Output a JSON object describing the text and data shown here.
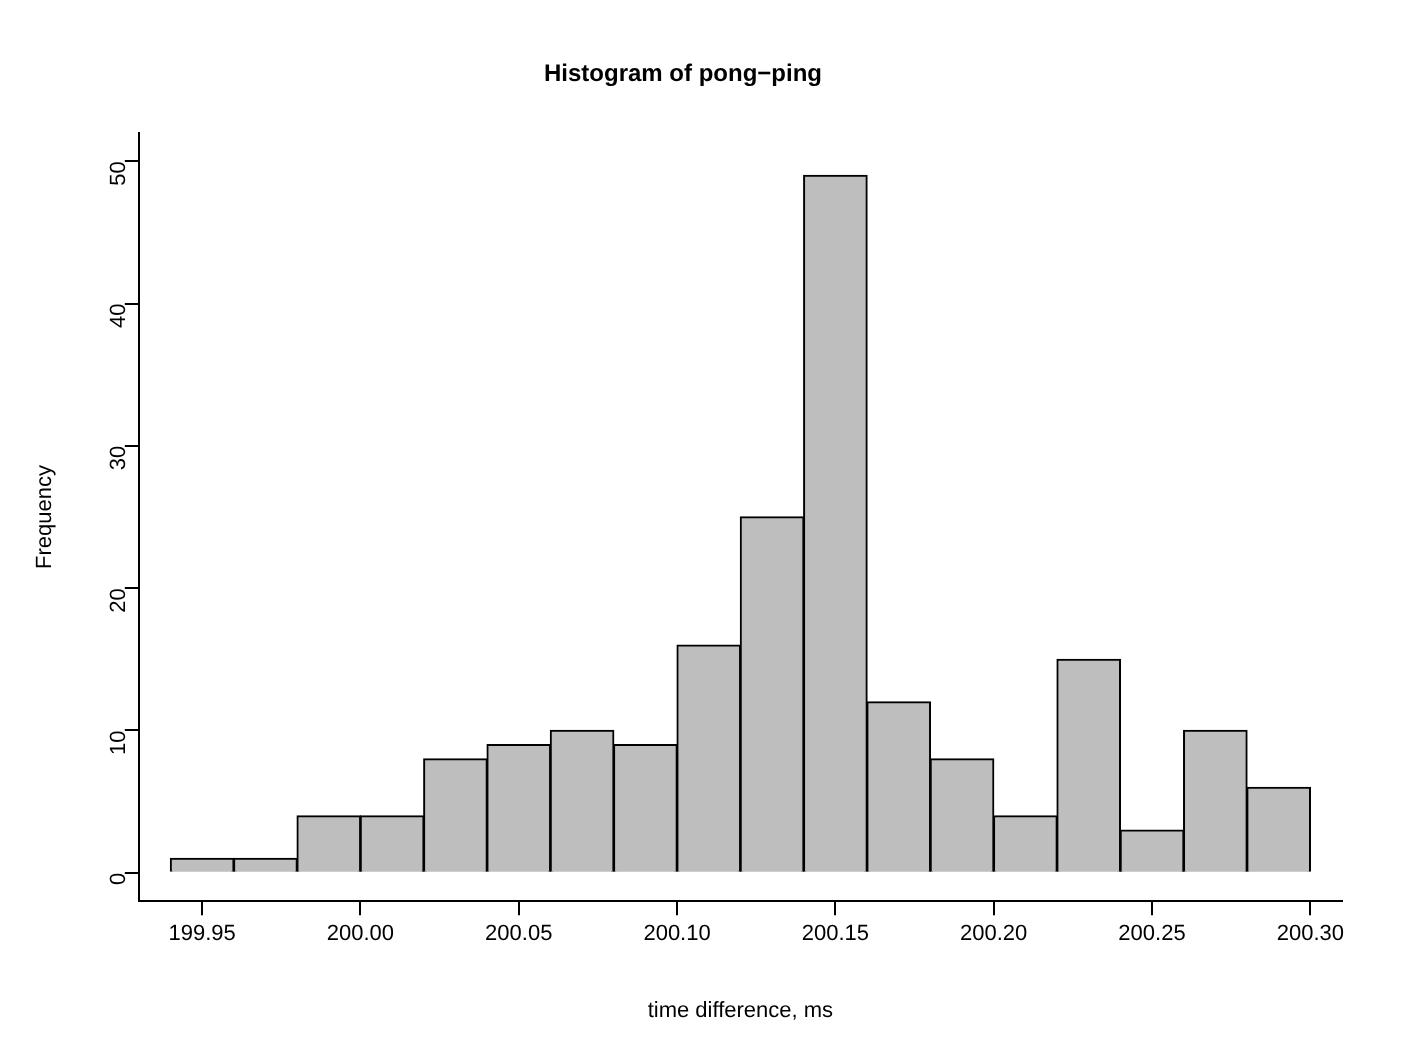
{
  "chart_data": {
    "type": "histogram",
    "title": "Histogram of pong−ping",
    "xlabel": "time difference, ms",
    "ylabel": "Frequency",
    "bins": [
      199.94,
      199.96,
      199.98,
      200.0,
      200.02,
      200.04,
      200.06,
      200.08,
      200.1,
      200.12,
      200.14,
      200.16,
      200.18,
      200.2,
      200.22,
      200.24,
      200.26,
      200.28,
      200.3
    ],
    "values": [
      1,
      1,
      4,
      4,
      8,
      9,
      10,
      9,
      16,
      25,
      49,
      12,
      8,
      4,
      15,
      3,
      10,
      6
    ],
    "color": "#bebebe",
    "xlim": [
      199.93,
      200.31
    ],
    "xticks": [
      {
        "value": 199.95,
        "label": "199.95"
      },
      {
        "value": 200.0,
        "label": "200.00"
      },
      {
        "value": 200.05,
        "label": "200.05"
      },
      {
        "value": 200.1,
        "label": "200.10"
      },
      {
        "value": 200.15,
        "label": "200.15"
      },
      {
        "value": 200.2,
        "label": "200.20"
      },
      {
        "value": 200.25,
        "label": "200.25"
      },
      {
        "value": 200.3,
        "label": "200.30"
      }
    ],
    "ylim": [
      -2,
      52
    ],
    "yticks": [
      0,
      10,
      20,
      30,
      40,
      50
    ],
    "grid": false,
    "legend": false
  }
}
